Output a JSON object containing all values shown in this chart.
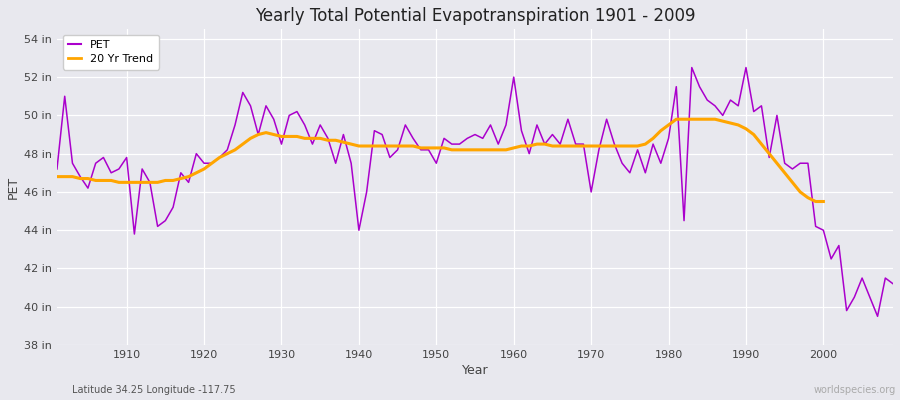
{
  "title": "Yearly Total Potential Evapotranspiration 1901 - 2009",
  "xlabel": "Year",
  "ylabel": "PET",
  "subtitle_left": "Latitude 34.25 Longitude -117.75",
  "subtitle_right": "worldspecies.org",
  "pet_color": "#aa00cc",
  "trend_color": "#FFA500",
  "background_color": "#e8e8ee",
  "plot_bg_color": "#e8e8ee",
  "ylim": [
    38,
    54.5
  ],
  "yticks": [
    38,
    40,
    42,
    44,
    46,
    48,
    50,
    52,
    54
  ],
  "ytick_labels": [
    "38 in",
    "40 in",
    "42 in",
    "44 in",
    "46 in",
    "48 in",
    "50 in",
    "52 in",
    "54 in"
  ],
  "years": [
    1901,
    1902,
    1903,
    1904,
    1905,
    1906,
    1907,
    1908,
    1909,
    1910,
    1911,
    1912,
    1913,
    1914,
    1915,
    1916,
    1917,
    1918,
    1919,
    1920,
    1921,
    1922,
    1923,
    1924,
    1925,
    1926,
    1927,
    1928,
    1929,
    1930,
    1931,
    1932,
    1933,
    1934,
    1935,
    1936,
    1937,
    1938,
    1939,
    1940,
    1941,
    1942,
    1943,
    1944,
    1945,
    1946,
    1947,
    1948,
    1949,
    1950,
    1951,
    1952,
    1953,
    1954,
    1955,
    1956,
    1957,
    1958,
    1959,
    1960,
    1961,
    1962,
    1963,
    1964,
    1965,
    1966,
    1967,
    1968,
    1969,
    1970,
    1971,
    1972,
    1973,
    1974,
    1975,
    1976,
    1977,
    1978,
    1979,
    1980,
    1981,
    1982,
    1983,
    1984,
    1985,
    1986,
    1987,
    1988,
    1989,
    1990,
    1991,
    1992,
    1993,
    1994,
    1995,
    1996,
    1997,
    1998,
    1999,
    2000,
    2001,
    2002,
    2003,
    2004,
    2005,
    2006,
    2007,
    2008,
    2009
  ],
  "pet_values": [
    47.2,
    51.0,
    47.5,
    46.8,
    46.2,
    47.5,
    47.8,
    47.0,
    47.2,
    47.8,
    43.8,
    47.2,
    46.5,
    44.2,
    44.5,
    45.2,
    47.0,
    46.5,
    48.0,
    47.5,
    47.5,
    47.8,
    48.2,
    49.5,
    51.2,
    50.5,
    49.0,
    50.5,
    49.8,
    48.5,
    50.0,
    50.2,
    49.5,
    48.5,
    49.5,
    48.8,
    47.5,
    49.0,
    47.5,
    44.0,
    46.0,
    49.2,
    49.0,
    47.8,
    48.2,
    49.5,
    48.8,
    48.2,
    48.2,
    47.5,
    48.8,
    48.5,
    48.5,
    48.8,
    49.0,
    48.8,
    49.5,
    48.5,
    49.5,
    52.0,
    49.2,
    48.0,
    49.5,
    48.5,
    49.0,
    48.5,
    49.8,
    48.5,
    48.5,
    46.0,
    48.2,
    49.8,
    48.5,
    47.5,
    47.0,
    48.2,
    47.0,
    48.5,
    47.5,
    48.8,
    51.5,
    44.5,
    52.5,
    51.5,
    50.8,
    50.5,
    50.0,
    50.8,
    50.5,
    52.5,
    50.2,
    50.5,
    47.8,
    50.0,
    47.5,
    47.2,
    47.5,
    47.5,
    44.2,
    44.0,
    42.5,
    43.2,
    39.8,
    40.5,
    41.5,
    40.5,
    39.5,
    41.5,
    41.2
  ],
  "trend_values": [
    46.8,
    46.8,
    46.8,
    46.7,
    46.7,
    46.6,
    46.6,
    46.6,
    46.5,
    46.5,
    46.5,
    46.5,
    46.5,
    46.5,
    46.6,
    46.6,
    46.7,
    46.8,
    47.0,
    47.2,
    47.5,
    47.8,
    48.0,
    48.2,
    48.5,
    48.8,
    49.0,
    49.1,
    49.0,
    48.9,
    48.9,
    48.9,
    48.8,
    48.8,
    48.8,
    48.7,
    48.7,
    48.6,
    48.5,
    48.4,
    48.4,
    48.4,
    48.4,
    48.4,
    48.4,
    48.4,
    48.4,
    48.3,
    48.3,
    48.3,
    48.3,
    48.2,
    48.2,
    48.2,
    48.2,
    48.2,
    48.2,
    48.2,
    48.2,
    48.3,
    48.4,
    48.4,
    48.5,
    48.5,
    48.4,
    48.4,
    48.4,
    48.4,
    48.4,
    48.4,
    48.4,
    48.4,
    48.4,
    48.4,
    48.4,
    48.4,
    48.5,
    48.8,
    49.2,
    49.5,
    49.8,
    49.8,
    49.8,
    49.8,
    49.8,
    49.8,
    49.7,
    49.6,
    49.5,
    49.3,
    49.0,
    48.5,
    48.0,
    47.5,
    47.0,
    46.5,
    46.0,
    45.7,
    45.5,
    45.5,
    null,
    null,
    null,
    null,
    null,
    null,
    null,
    null,
    null,
    null
  ],
  "xlim": [
    1901,
    2009
  ]
}
